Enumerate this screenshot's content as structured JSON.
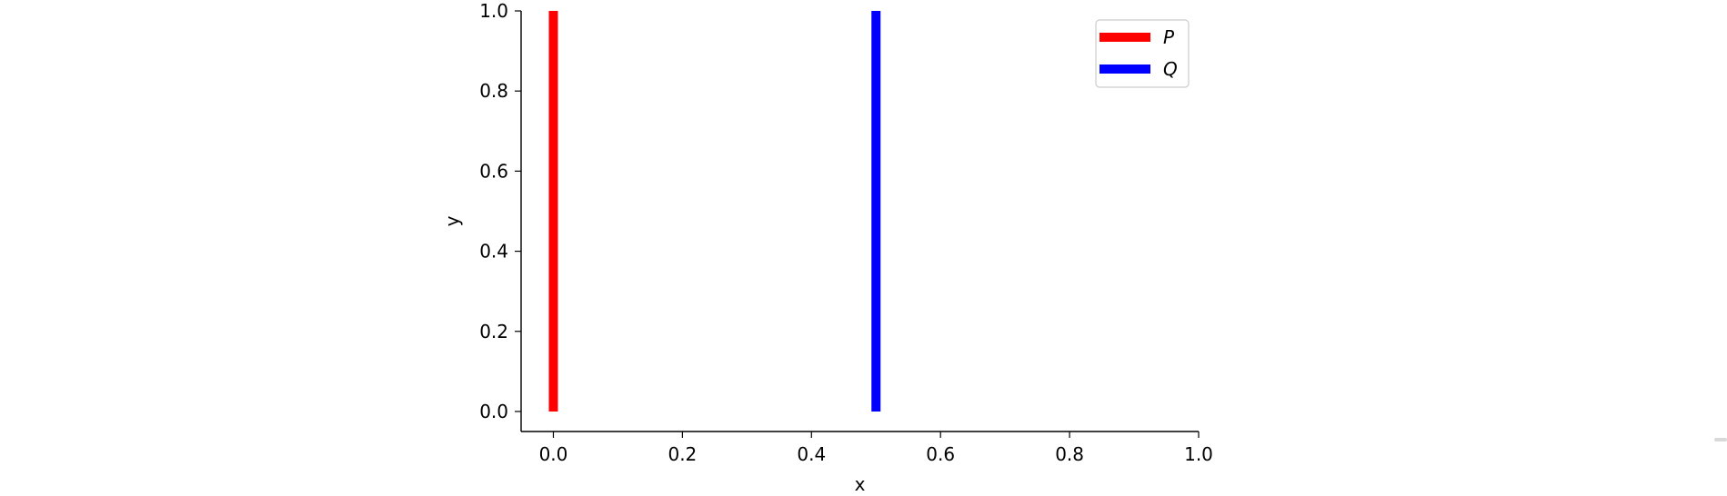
{
  "chart_data": {
    "type": "line",
    "title": "",
    "xlabel": "x",
    "ylabel": "y",
    "xlim": [
      -0.05,
      1.0
    ],
    "ylim": [
      -0.05,
      1.0
    ],
    "xticks": [
      0.0,
      0.2,
      0.4,
      0.6,
      0.8,
      1.0
    ],
    "xtick_labels": [
      "0.0",
      "0.2",
      "0.4",
      "0.6",
      "0.8",
      "1.0"
    ],
    "yticks": [
      0.0,
      0.2,
      0.4,
      0.6,
      0.8,
      1.0
    ],
    "ytick_labels": [
      "0.0",
      "0.2",
      "0.4",
      "0.6",
      "0.8",
      "1.0"
    ],
    "grid": false,
    "legend_position": "top-right",
    "series": [
      {
        "name": "P",
        "color": "#ff0000",
        "x": [
          0.0,
          0.0
        ],
        "y": [
          0.0,
          1.0
        ]
      },
      {
        "name": "Q",
        "color": "#0000ff",
        "x": [
          0.5,
          0.5
        ],
        "y": [
          0.0,
          1.0
        ]
      }
    ]
  }
}
